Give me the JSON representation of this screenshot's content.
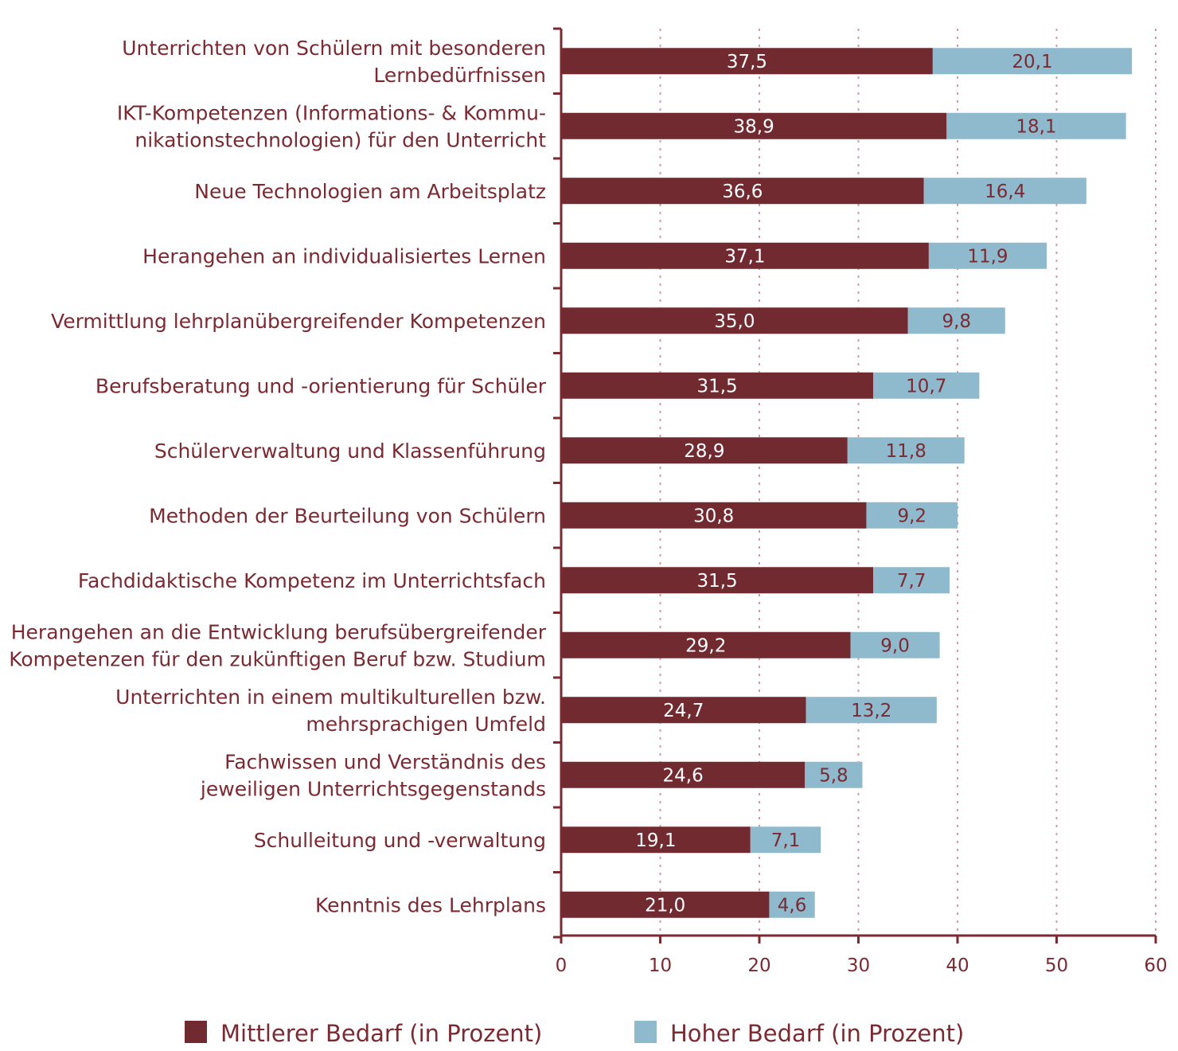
{
  "colors": {
    "mittel": "#722a31",
    "hoch": "#8fb9cd",
    "text": "#7b2a32",
    "axis": "#7b2a32",
    "grid": "#c9a0a6"
  },
  "chart_data": {
    "type": "bar",
    "orientation": "horizontal",
    "stacked": true,
    "categories": [
      [
        "Unterrichten von Schülern mit besonderen",
        "Lernbedürfnissen"
      ],
      [
        "IKT-Kompetenzen (Informations- & Kommu-",
        "nikationstechnologien) für den Unterricht"
      ],
      [
        "Neue Technologien am Arbeitsplatz"
      ],
      [
        "Herangehen an individualisiertes Lernen"
      ],
      [
        "Vermittlung lehrplanübergreifender Kompetenzen"
      ],
      [
        "Berufsberatung und -orientierung für Schüler"
      ],
      [
        "Schülerverwaltung und Klassenführung"
      ],
      [
        "Methoden der Beurteilung von Schülern"
      ],
      [
        "Fachdidaktische Kompetenz im Unterrichtsfach"
      ],
      [
        "Herangehen an die Entwicklung berufsübergreifender",
        "Kompetenzen für den zukünftigen Beruf bzw. Studium"
      ],
      [
        "Unterrichten in einem multikulturellen bzw.",
        "mehrsprachigen Umfeld"
      ],
      [
        "Fachwissen und Verständnis des",
        "jeweiligen Unterrichtsgegenstands"
      ],
      [
        "Schulleitung und -verwaltung"
      ],
      [
        "Kenntnis des Lehrplans"
      ]
    ],
    "series": [
      {
        "name": "Mittlerer Bedarf (in Prozent)",
        "values": [
          37.5,
          38.9,
          36.6,
          37.1,
          35.0,
          31.5,
          28.9,
          30.8,
          31.5,
          29.2,
          24.7,
          24.6,
          19.1,
          21.0
        ],
        "labels": [
          "37,5",
          "38,9",
          "36,6",
          "37,1",
          "35,0",
          "31,5",
          "28,9",
          "30,8",
          "31,5",
          "29,2",
          "24,7",
          "24,6",
          "19,1",
          "21,0"
        ]
      },
      {
        "name": "Hoher Bedarf (in Prozent)",
        "values": [
          20.1,
          18.1,
          16.4,
          11.9,
          9.8,
          10.7,
          11.8,
          9.2,
          7.7,
          9.0,
          13.2,
          5.8,
          7.1,
          4.6
        ],
        "labels": [
          "20,1",
          "18,1",
          "16,4",
          "11,9",
          "9,8",
          "10,7",
          "11,8",
          "9,2",
          "7,7",
          "9,0",
          "13,2",
          "5,8",
          "7,1",
          "4,6"
        ]
      }
    ],
    "xlim": [
      0,
      60
    ],
    "xticks": [
      "0",
      "10",
      "20",
      "30",
      "40",
      "50",
      "60"
    ],
    "grid": true,
    "legend": "bottom"
  }
}
